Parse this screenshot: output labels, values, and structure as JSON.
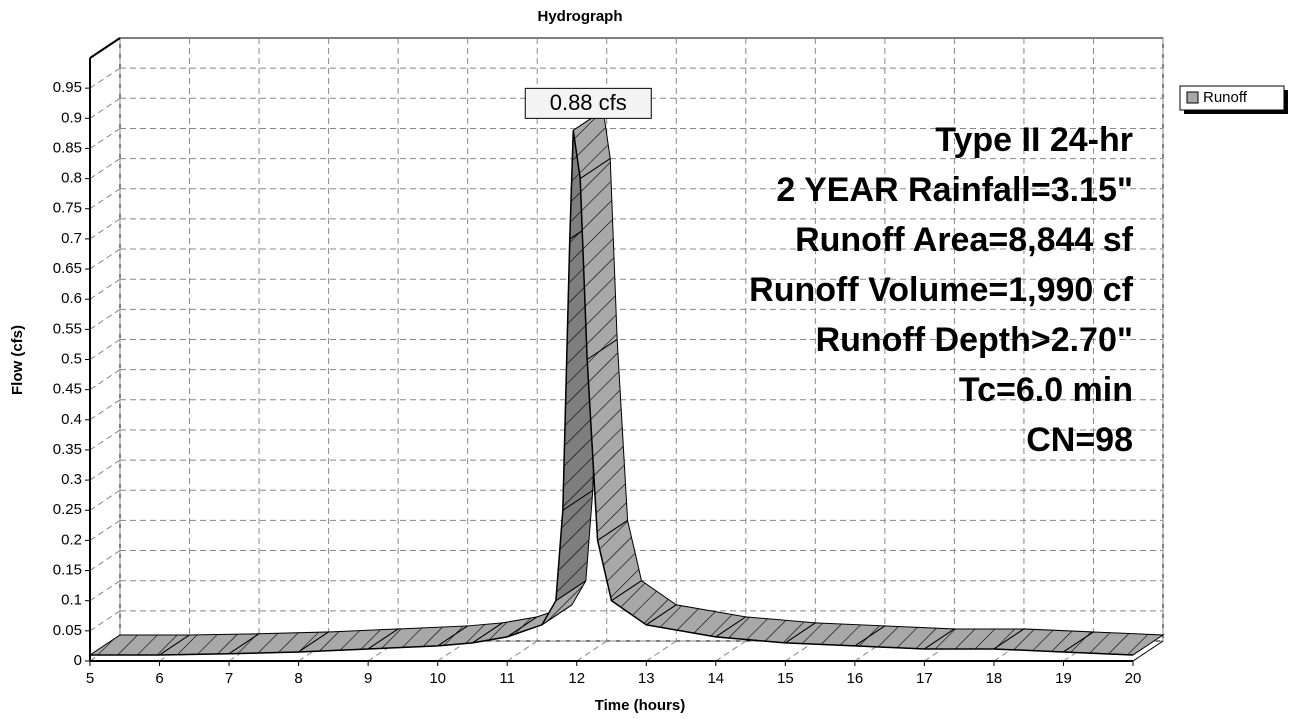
{
  "chart_data": {
    "type": "line",
    "title": "Hydrograph",
    "x_label": "Time  (hours)",
    "y_label": "Flow  (cfs)",
    "x": [
      5,
      6,
      7,
      8,
      9,
      10,
      10.5,
      11,
      11.5,
      11.7,
      11.8,
      11.9,
      11.95,
      12.05,
      12.15,
      12.3,
      12.5,
      13,
      14,
      15,
      16,
      17,
      18,
      19,
      20
    ],
    "series": [
      {
        "name": "Runoff",
        "color": "#a8a8a8",
        "values": [
          0.01,
          0.01,
          0.012,
          0.015,
          0.02,
          0.025,
          0.03,
          0.04,
          0.06,
          0.1,
          0.25,
          0.7,
          0.88,
          0.8,
          0.5,
          0.2,
          0.1,
          0.06,
          0.04,
          0.03,
          0.025,
          0.02,
          0.02,
          0.015,
          0.01
        ]
      }
    ],
    "peak_label": "0.88 cfs",
    "annotations": [
      "Type II 24-hr",
      "2 YEAR Rainfall=3.15\"",
      "Runoff Area=8,844 sf",
      "Runoff Volume=1,990 cf",
      "Runoff Depth>2.70\"",
      "Tc=6.0 min",
      "CN=98"
    ],
    "xlim": [
      5,
      20
    ],
    "xticks": [
      5,
      6,
      7,
      8,
      9,
      10,
      11,
      12,
      13,
      14,
      15,
      16,
      17,
      18,
      19,
      20
    ],
    "ylim": [
      0,
      1
    ],
    "yticks": [
      0,
      0.05,
      0.1,
      0.15,
      0.2,
      0.25,
      0.3,
      0.35,
      0.4,
      0.45,
      0.5,
      0.55,
      0.6,
      0.65,
      0.7,
      0.75,
      0.8,
      0.85,
      0.9,
      0.95
    ],
    "grid": true
  }
}
